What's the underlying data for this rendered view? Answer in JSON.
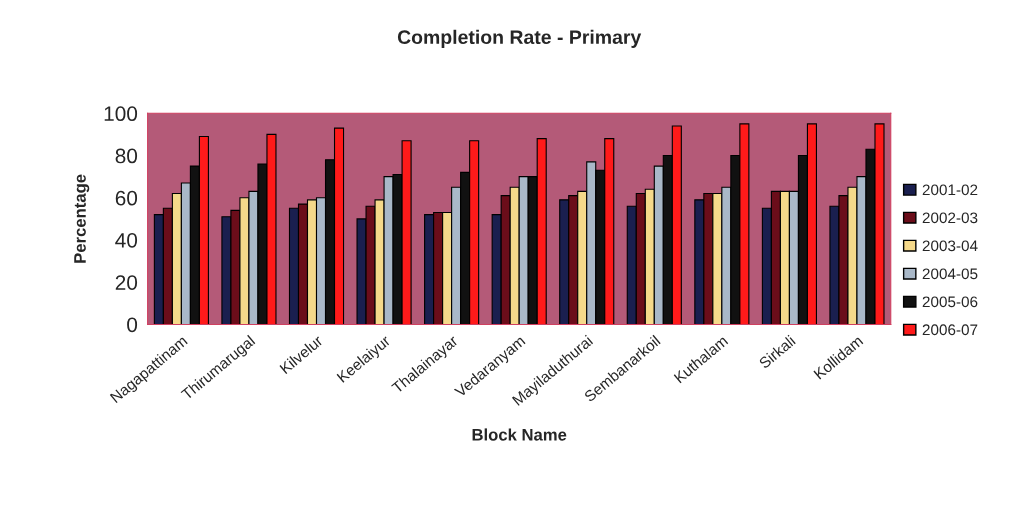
{
  "chart_data": {
    "type": "bar",
    "title": "Completion Rate - Primary",
    "xlabel": "Block Name",
    "ylabel": "Percentage",
    "categories": [
      "Nagapattinam",
      "Thirumarugal",
      "Kilvelur",
      "Keelaiyur",
      "Thalainayar",
      "Vedaranyam",
      "Mayiladuthurai",
      "Sembanarkoil",
      "Kuthalam",
      "Sirkali",
      "Kollidam"
    ],
    "series": [
      {
        "name": "2001-02",
        "color": "#1a1f4f",
        "values": [
          52,
          51,
          55,
          50,
          52,
          52,
          59,
          56,
          59,
          55,
          56
        ]
      },
      {
        "name": "2002-03",
        "color": "#6b0d1a",
        "values": [
          55,
          54,
          57,
          56,
          53,
          61,
          61,
          62,
          62,
          63,
          61
        ]
      },
      {
        "name": "2003-04",
        "color": "#f5d98a",
        "values": [
          62,
          60,
          59,
          59,
          53,
          65,
          63,
          64,
          62,
          63,
          65
        ]
      },
      {
        "name": "2004-05",
        "color": "#a9b8c8",
        "values": [
          67,
          63,
          60,
          70,
          65,
          70,
          77,
          75,
          65,
          63,
          70
        ]
      },
      {
        "name": "2005-06",
        "color": "#111111",
        "values": [
          75,
          76,
          78,
          71,
          72,
          70,
          73,
          80,
          80,
          80,
          83
        ]
      },
      {
        "name": "2006-07",
        "color": "#ff1a1a",
        "values": [
          89,
          90,
          93,
          87,
          87,
          88,
          88,
          94,
          95,
          95,
          95
        ]
      }
    ],
    "ylim": [
      0,
      100
    ],
    "yticks": [
      0,
      20,
      40,
      60,
      80,
      100
    ],
    "grid": false,
    "legend": "right"
  }
}
